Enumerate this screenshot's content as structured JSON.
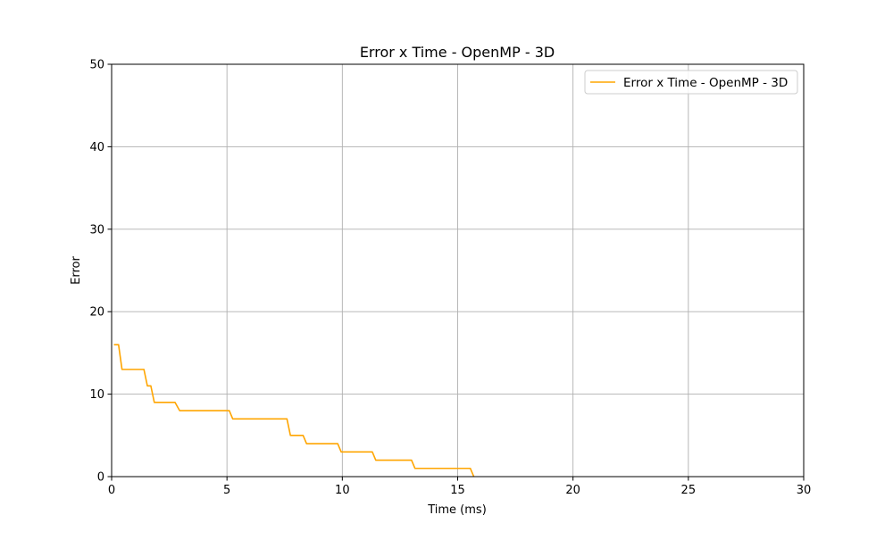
{
  "chart_data": {
    "type": "line",
    "title": "Error x Time - OpenMP - 3D",
    "xlabel": "Time (ms)",
    "ylabel": "Error",
    "xlim": [
      0,
      30
    ],
    "ylim": [
      0,
      50
    ],
    "xticks": [
      0,
      5,
      10,
      15,
      20,
      25,
      30
    ],
    "yticks": [
      0,
      10,
      20,
      30,
      40,
      50
    ],
    "grid": true,
    "legend_position": "top-right",
    "series": [
      {
        "name": "Error x Time - OpenMP - 3D",
        "color": "#ffa500",
        "x": [
          0.1,
          0.3,
          0.45,
          1.4,
          1.55,
          1.7,
          1.85,
          2.75,
          2.95,
          5.1,
          5.25,
          7.6,
          7.75,
          8.3,
          8.45,
          9.8,
          9.95,
          11.3,
          11.45,
          13.0,
          13.15,
          15.55,
          15.7
        ],
        "y": [
          16,
          16,
          13,
          13,
          11,
          11,
          9,
          9,
          8,
          8,
          7,
          7,
          5,
          5,
          4,
          4,
          3,
          3,
          2,
          2,
          1,
          1,
          0
        ]
      }
    ]
  }
}
